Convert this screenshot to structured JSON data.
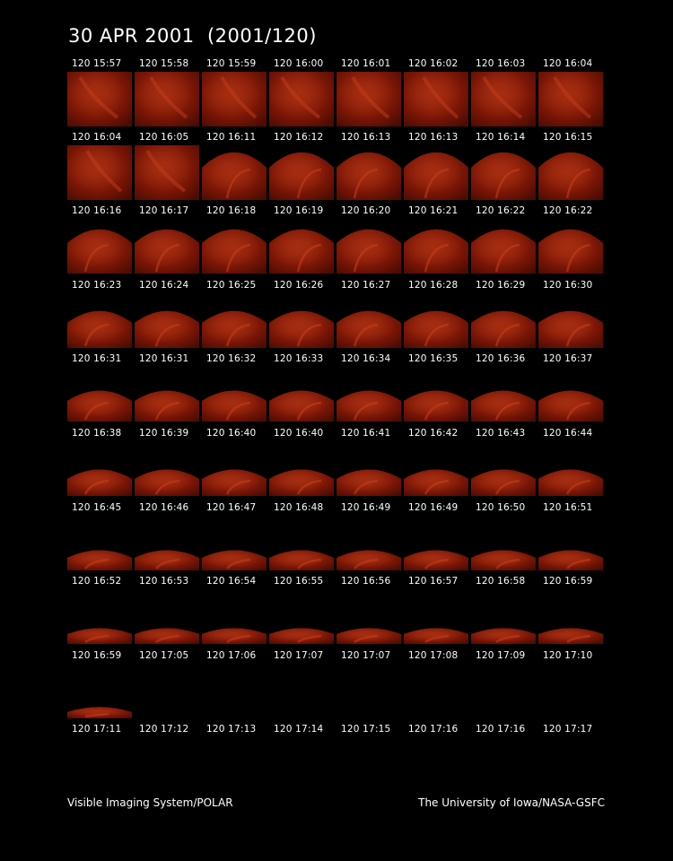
{
  "title": "30 APR 2001  (2001/120)",
  "footer_left": "Visible Imaging System/POLAR",
  "footer_right": "The University of Iowa/NASA-GSFC",
  "rows": [
    {
      "timestamps": [
        "120 15:57",
        "120 15:58",
        "120 15:59",
        "120 16:00",
        "120 16:01",
        "120 16:02",
        "120 16:03",
        "120 16:04"
      ],
      "view": "full",
      "imaged": 8
    },
    {
      "timestamps": [
        "120 16:04",
        "120 16:05",
        "120 16:11",
        "120 16:12",
        "120 16:13",
        "120 16:13",
        "120 16:14",
        "120 16:15"
      ],
      "view": "full-then-dome",
      "imaged": 8
    },
    {
      "timestamps": [
        "120 16:16",
        "120 16:17",
        "120 16:18",
        "120 16:19",
        "120 16:20",
        "120 16:21",
        "120 16:22",
        "120 16:22"
      ],
      "view": "dome",
      "imaged": 8
    },
    {
      "timestamps": [
        "120 16:23",
        "120 16:24",
        "120 16:25",
        "120 16:26",
        "120 16:27",
        "120 16:28",
        "120 16:29",
        "120 16:30"
      ],
      "view": "dome",
      "imaged": 8
    },
    {
      "timestamps": [
        "120 16:31",
        "120 16:31",
        "120 16:32",
        "120 16:33",
        "120 16:34",
        "120 16:35",
        "120 16:36",
        "120 16:37"
      ],
      "view": "dome",
      "imaged": 8
    },
    {
      "timestamps": [
        "120 16:38",
        "120 16:39",
        "120 16:40",
        "120 16:40",
        "120 16:41",
        "120 16:42",
        "120 16:43",
        "120 16:44"
      ],
      "view": "dome",
      "imaged": 8
    },
    {
      "timestamps": [
        "120 16:45",
        "120 16:46",
        "120 16:47",
        "120 16:48",
        "120 16:49",
        "120 16:49",
        "120 16:50",
        "120 16:51"
      ],
      "view": "dome",
      "imaged": 8
    },
    {
      "timestamps": [
        "120 16:52",
        "120 16:53",
        "120 16:54",
        "120 16:55",
        "120 16:56",
        "120 16:57",
        "120 16:58",
        "120 16:59"
      ],
      "view": "dome",
      "imaged": 8
    },
    {
      "timestamps": [
        "120 16:59",
        "120 17:05",
        "120 17:06",
        "120 17:07",
        "120 17:07",
        "120 17:08",
        "120 17:09",
        "120 17:10"
      ],
      "view": "dome",
      "imaged": 1
    },
    {
      "timestamps": [
        "120 17:11",
        "120 17:12",
        "120 17:13",
        "120 17:14",
        "120 17:15",
        "120 17:16",
        "120 17:16",
        "120 17:17"
      ],
      "view": "none",
      "imaged": 0
    }
  ],
  "colors": {
    "background": "#000000",
    "text": "#ffffff",
    "aurora_base": "#7a1606",
    "aurora_glow": "#c8401a"
  }
}
